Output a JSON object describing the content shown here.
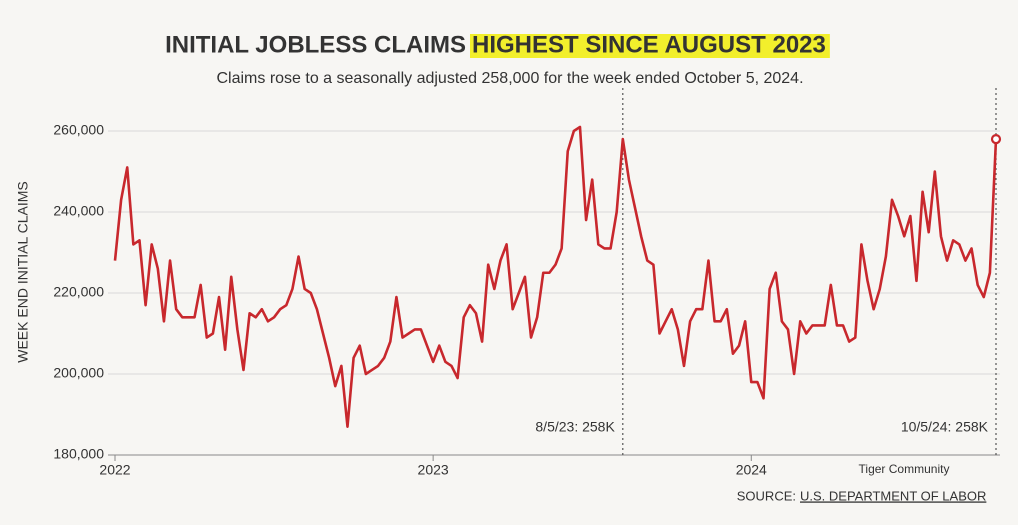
{
  "chart_data": {
    "type": "line",
    "title": "INITIAL JOBLESS CLAIMS",
    "title_highlight": "HIGHEST SINCE AUGUST 2023",
    "subtitle": "Claims rose to a seasonally adjusted 258,000 for the week ended October 5, 2024.",
    "ylabel": "WEEK END INITIAL CLAIMS",
    "color": "#c8282d",
    "values": [
      228000,
      243000,
      251000,
      232000,
      233000,
      217000,
      232000,
      226000,
      213000,
      228000,
      216000,
      214000,
      214000,
      214000,
      222000,
      209000,
      210000,
      219000,
      206000,
      224000,
      211000,
      201000,
      215000,
      214000,
      216000,
      213000,
      214000,
      216000,
      217000,
      221000,
      229000,
      221000,
      220000,
      216000,
      210000,
      204000,
      197000,
      202000,
      187000,
      204000,
      207000,
      200000,
      201000,
      202000,
      204000,
      208000,
      219000,
      209000,
      210000,
      211000,
      211000,
      207000,
      203000,
      207000,
      203000,
      202000,
      199000,
      214000,
      217000,
      215000,
      208000,
      227000,
      221000,
      228000,
      232000,
      216000,
      220000,
      224000,
      209000,
      214000,
      225000,
      225000,
      227000,
      231000,
      255000,
      260000,
      261000,
      238000,
      248000,
      232000,
      231000,
      231000,
      240000,
      258000,
      248000,
      241000,
      234000,
      228000,
      227000,
      210000,
      213000,
      216000,
      211000,
      202000,
      213000,
      216000,
      216000,
      228000,
      213000,
      213000,
      216000,
      205000,
      207000,
      213000,
      198000,
      198000,
      194000,
      221000,
      225000,
      213000,
      211000,
      200000,
      213000,
      210000,
      212000,
      212000,
      212000,
      222000,
      212000,
      212000,
      208000,
      209000,
      232000,
      223000,
      216000,
      221000,
      229000,
      243000,
      239000,
      234000,
      239000,
      223000,
      245000,
      235000,
      250000,
      234000,
      228000,
      233000,
      232000,
      228000,
      231000,
      222000,
      219000,
      225000,
      258000
    ],
    "xlim": [
      0,
      144
    ],
    "xticks": [
      {
        "value": 0,
        "label": "2022"
      },
      {
        "value": 52,
        "label": "2023"
      },
      {
        "value": 104,
        "label": "2024"
      }
    ],
    "ylim": [
      180000,
      260000
    ],
    "yticks": [
      {
        "value": 180000,
        "label": "180,000"
      },
      {
        "value": 200000,
        "label": "200,000"
      },
      {
        "value": 220000,
        "label": "220,000"
      },
      {
        "value": 240000,
        "label": "240,000"
      },
      {
        "value": 260000,
        "label": "260,000"
      }
    ],
    "grid": true,
    "annotations": [
      {
        "text": "8/5/23: 258K",
        "x": 83
      },
      {
        "text": "10/5/24: 258K",
        "x": 144
      }
    ],
    "source_label": "SOURCE:",
    "source": "U.S. DEPARTMENT OF LABOR",
    "watermark": "Tiger Community"
  }
}
